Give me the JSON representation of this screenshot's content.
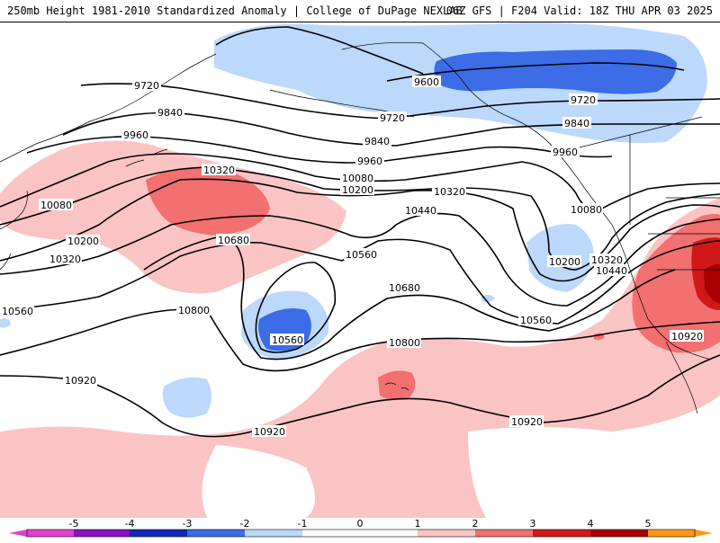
{
  "header": {
    "left_title": "250mb Height 1981-2010 Standardized Anomaly | College of DuPage NEXLAB",
    "right_title": "06Z GFS | F204 Valid: 18Z THU APR 03 2025"
  },
  "colors": {
    "neg5": "#e040d0",
    "neg4": "#8a12c0",
    "neg3": "#1028b8",
    "neg2": "#3c6ce6",
    "neg1": "#bcd8fb",
    "pos1": "#fbc4c4",
    "pos2": "#f27070",
    "pos3": "#d01818",
    "pos4": "#a80000",
    "pos5": "#ff9a10"
  },
  "colorbar": {
    "ticks": [
      "-5",
      "-4",
      "-3",
      "-2",
      "-1",
      "0",
      "1",
      "2",
      "3",
      "4",
      "5"
    ]
  },
  "contours": {
    "l9720a": "9720",
    "l9600": "9600",
    "l9720b": "9720",
    "l9720c": "9720",
    "l9840a": "9840",
    "l9840b": "9840",
    "l9840c": "9840",
    "l9960a": "9960",
    "l9960b": "9960",
    "l9960c": "9960",
    "l10080a": "10080",
    "l10080b": "10080",
    "l10080c": "10080",
    "l10200a": "10200",
    "l10200b": "10200",
    "l10200c": "10200",
    "l10320a": "10320",
    "l10320b": "10320",
    "l10320c": "10320",
    "l10320d": "10320",
    "l10440a": "10440",
    "l10440b": "10440",
    "l10560a": "10560",
    "l10560b": "10560",
    "l10560c": "10560",
    "l10560d": "10560",
    "l10680a": "10680",
    "l10680b": "10680",
    "l10800a": "10800",
    "l10800b": "10800",
    "l10920a": "10920",
    "l10920b": "10920",
    "l10920c": "10920",
    "l10920d": "10920"
  }
}
